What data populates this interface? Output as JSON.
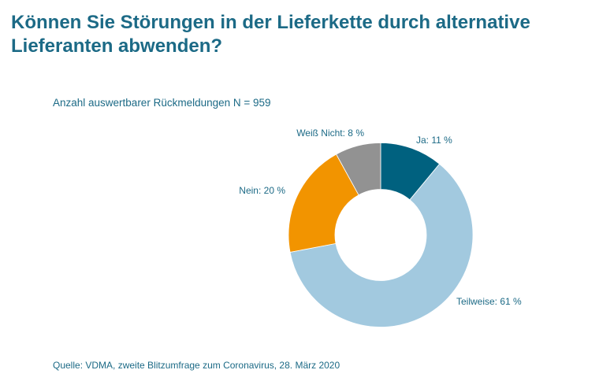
{
  "title": "Können Sie Störungen in der Lieferkette durch alternative Lieferanten abwenden?",
  "subtitle": "Anzahl auswertbarer Rückmeldungen N = 959",
  "source": "Quelle: VDMA, zweite Blitzumfrage zum Coronavirus, 28. März 2020",
  "chart_data": {
    "type": "pie",
    "variant": "donut",
    "title": "Können Sie Störungen in der Lieferkette durch alternative Lieferanten abwenden?",
    "categories": [
      "Ja",
      "Teilweise",
      "Nein",
      "Weiß Nicht"
    ],
    "values": [
      11,
      61,
      20,
      8
    ],
    "unit": "%",
    "labels": [
      "Ja: 11 %",
      "Teilweise: 61 %",
      "Nein: 20 %",
      "Weiß Nicht: 8 %"
    ],
    "colors": [
      "#00617f",
      "#a2c9df",
      "#f29400",
      "#929292"
    ],
    "start": "12 o'clock, clockwise"
  }
}
